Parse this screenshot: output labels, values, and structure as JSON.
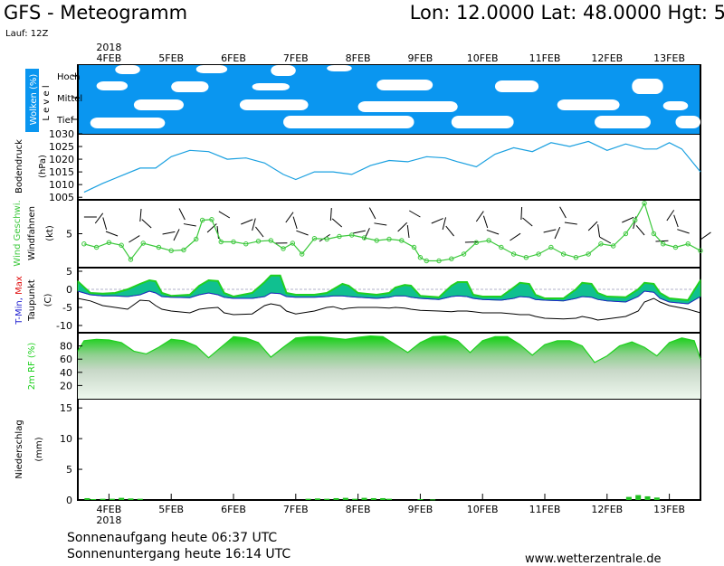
{
  "header": {
    "title": "GFS - Meteogramm",
    "coords": "Lon: 12.0000  Lat: 48.0000  Hgt: 5",
    "run": "Lauf: 12Z"
  },
  "footer": {
    "sunrise": "Sonnenaufgang heute 06:37 UTC",
    "sunset": "Sonnenuntergang heute 16:14 UTC",
    "website": "www.wetterzentrale.de"
  },
  "colors": {
    "cloud": "#0a96f0",
    "pressure": "#1aa0e0",
    "wind": "#3cc83c",
    "temp_max": "#e01010",
    "temp_min": "#2020d0",
    "temp_fill": "#10c090",
    "temp_top": "#20d020",
    "humidity": "#20d020",
    "precip": "#20c020"
  },
  "chart_data": {
    "type": "line",
    "x_axis": {
      "year": "2018",
      "ticks": [
        "4FEB",
        "5FEB",
        "6FEB",
        "7FEB",
        "8FEB",
        "9FEB",
        "10FEB",
        "11FEB",
        "12FEB",
        "13FEB"
      ]
    },
    "panels": {
      "clouds": {
        "ylabel": "Wolken (%)",
        "level_label": "L e v e l",
        "levels": [
          "Hoch",
          "Mittel",
          "Tief"
        ]
      },
      "pressure": {
        "ylabel": "Bodendruck",
        "unit": "(hPa)",
        "ylim": [
          1004,
          1030
        ],
        "yticks": [
          1005,
          1010,
          1015,
          1020,
          1025,
          1030
        ],
        "x_days": [
          3.6,
          3.9,
          4.2,
          4.5,
          4.75,
          5.0,
          5.3,
          5.6,
          5.9,
          6.2,
          6.5,
          6.8,
          7.0,
          7.3,
          7.6,
          7.9,
          8.2,
          8.5,
          8.8,
          9.1,
          9.4,
          9.6,
          9.9,
          10.2,
          10.5,
          10.8,
          11.1,
          11.4,
          11.7,
          12.0,
          12.3,
          12.6,
          12.8,
          13.0,
          13.2,
          13.5
        ],
        "values": [
          1007,
          1010.5,
          1013.5,
          1016.5,
          1016.5,
          1021,
          1023.5,
          1023,
          1020,
          1020.5,
          1018.5,
          1014,
          1012,
          1015,
          1015,
          1014,
          1017.5,
          1019.5,
          1019,
          1021,
          1020.5,
          1019,
          1017,
          1022,
          1024.5,
          1023,
          1026.5,
          1025,
          1027,
          1023.5,
          1026,
          1024,
          1024,
          1026.5,
          1024,
          1015
        ]
      },
      "wind": {
        "ylabel": "Wind Geschwi.",
        "sublabel": "Windfahnen",
        "unit": "(kt)",
        "ylim": [
          0,
          10
        ],
        "yticks": [
          5
        ],
        "x_days": [
          3.6,
          3.8,
          4.0,
          4.2,
          4.35,
          4.55,
          4.8,
          5.0,
          5.2,
          5.4,
          5.5,
          5.65,
          5.8,
          6.0,
          6.2,
          6.4,
          6.6,
          6.8,
          6.95,
          7.1,
          7.3,
          7.5,
          7.7,
          7.9,
          8.1,
          8.3,
          8.5,
          8.7,
          8.9,
          9.0,
          9.1,
          9.3,
          9.5,
          9.7,
          9.9,
          10.1,
          10.3,
          10.5,
          10.7,
          10.9,
          11.1,
          11.3,
          11.5,
          11.7,
          11.9,
          12.1,
          12.3,
          12.45,
          12.6,
          12.75,
          12.9,
          13.1,
          13.3,
          13.5
        ],
        "values": [
          3.5,
          3.0,
          3.7,
          3.3,
          1.2,
          3.6,
          3.0,
          2.5,
          2.6,
          4.2,
          7.0,
          7.1,
          3.8,
          3.8,
          3.5,
          3.9,
          4.0,
          2.8,
          3.6,
          2.0,
          4.3,
          4.2,
          4.6,
          4.8,
          4.4,
          4.0,
          4.2,
          4.0,
          3.0,
          1.5,
          1.0,
          1.0,
          1.3,
          2.0,
          3.7,
          4.0,
          3.0,
          2.0,
          1.5,
          2.0,
          3.0,
          2.0,
          1.5,
          2.0,
          3.5,
          3.2,
          5.0,
          7.0,
          9.5,
          5.0,
          3.5,
          3.0,
          3.5,
          2.5
        ]
      },
      "temperature": {
        "ylabel": "T-Min, Max",
        "sublabel": "Taupunkt",
        "unit": "(C)",
        "ylim": [
          -12,
          6
        ],
        "yticks": [
          5,
          0,
          -5,
          -10
        ],
        "x_days": [
          3.5,
          3.7,
          3.9,
          4.1,
          4.3,
          4.5,
          4.65,
          4.75,
          4.85,
          5.0,
          5.3,
          5.45,
          5.6,
          5.75,
          5.85,
          6.0,
          6.3,
          6.5,
          6.6,
          6.75,
          6.85,
          7.0,
          7.3,
          7.5,
          7.6,
          7.75,
          7.85,
          8.0,
          8.3,
          8.5,
          8.6,
          8.75,
          8.85,
          9.0,
          9.3,
          9.5,
          9.6,
          9.75,
          9.85,
          10.0,
          10.3,
          10.5,
          10.6,
          10.75,
          10.85,
          11.0,
          11.3,
          11.5,
          11.6,
          11.75,
          11.85,
          12.0,
          12.3,
          12.5,
          12.6,
          12.75,
          12.85,
          13.0,
          13.3,
          13.5
        ],
        "max": [
          2.2,
          -1.0,
          -1.2,
          -1.0,
          0.0,
          1.5,
          2.5,
          2.2,
          -1.0,
          -1.8,
          -1.5,
          1.0,
          2.5,
          2.3,
          -1.0,
          -2.0,
          -1.0,
          2.0,
          3.8,
          3.8,
          -1.0,
          -1.5,
          -1.5,
          -1.0,
          0.0,
          1.5,
          1.0,
          -1.0,
          -1.5,
          -1.0,
          0.5,
          1.2,
          1.0,
          -1.8,
          -2.2,
          1.0,
          2.0,
          2.0,
          -1.5,
          -2.0,
          -2.0,
          0.5,
          1.8,
          1.5,
          -1.5,
          -2.5,
          -2.5,
          0.0,
          1.8,
          1.5,
          -1.0,
          -2.0,
          -2.2,
          0.0,
          1.8,
          1.5,
          -1.0,
          -2.5,
          -3.0,
          2.5
        ],
        "min": [
          -0.5,
          -1.5,
          -1.8,
          -1.8,
          -2.0,
          -1.5,
          -0.5,
          -1.0,
          -2.0,
          -2.2,
          -2.3,
          -1.5,
          -1.0,
          -1.5,
          -2.2,
          -2.5,
          -2.5,
          -2.0,
          -1.0,
          -1.2,
          -2.0,
          -2.2,
          -2.2,
          -2.0,
          -1.8,
          -1.8,
          -2.0,
          -2.2,
          -2.5,
          -2.2,
          -1.8,
          -1.8,
          -2.2,
          -2.5,
          -2.8,
          -2.0,
          -1.8,
          -2.0,
          -2.5,
          -2.8,
          -3.0,
          -2.5,
          -2.0,
          -2.2,
          -2.8,
          -3.0,
          -3.2,
          -2.5,
          -2.0,
          -2.2,
          -2.8,
          -3.2,
          -3.5,
          -2.0,
          -0.5,
          -0.8,
          -2.5,
          -3.5,
          -4.0,
          -2.0
        ],
        "dewpoint": [
          -2.5,
          -3.2,
          -4.5,
          -5.0,
          -5.5,
          -3.0,
          -3.2,
          -4.5,
          -5.5,
          -6.0,
          -6.5,
          -5.5,
          -5.2,
          -5.0,
          -6.5,
          -7.0,
          -6.8,
          -4.5,
          -4.0,
          -4.5,
          -6.0,
          -6.8,
          -6.0,
          -5.0,
          -4.8,
          -5.5,
          -5.2,
          -5.0,
          -5.0,
          -5.2,
          -5.0,
          -5.2,
          -5.5,
          -5.8,
          -6.0,
          -6.2,
          -6.0,
          -6.0,
          -6.2,
          -6.5,
          -6.5,
          -6.8,
          -7.0,
          -7.0,
          -7.5,
          -8.0,
          -8.2,
          -8.0,
          -7.5,
          -8.0,
          -8.5,
          -8.2,
          -7.5,
          -6.0,
          -3.5,
          -2.5,
          -3.5,
          -4.5,
          -5.5,
          -6.5
        ]
      },
      "humidity": {
        "ylabel": "2m RF (%)",
        "ylim": [
          0,
          100
        ],
        "yticks": [
          80,
          60,
          40,
          20
        ],
        "x_days": [
          3.5,
          3.6,
          3.8,
          4.0,
          4.2,
          4.4,
          4.6,
          4.8,
          5.0,
          5.2,
          5.4,
          5.6,
          5.8,
          6.0,
          6.2,
          6.4,
          6.6,
          6.8,
          7.0,
          7.2,
          7.4,
          7.6,
          7.8,
          8.0,
          8.2,
          8.4,
          8.6,
          8.8,
          9.0,
          9.2,
          9.4,
          9.6,
          9.8,
          10.0,
          10.2,
          10.4,
          10.6,
          10.8,
          11.0,
          11.2,
          11.4,
          11.6,
          11.8,
          12.0,
          12.2,
          12.4,
          12.6,
          12.8,
          13.0,
          13.2,
          13.4,
          13.5
        ],
        "values": [
          72,
          88,
          90,
          89,
          85,
          72,
          68,
          78,
          90,
          88,
          80,
          62,
          78,
          94,
          92,
          85,
          63,
          78,
          92,
          94,
          94,
          92,
          90,
          93,
          95,
          94,
          82,
          70,
          85,
          94,
          95,
          88,
          70,
          88,
          94,
          94,
          82,
          66,
          82,
          88,
          88,
          80,
          55,
          65,
          80,
          86,
          78,
          65,
          85,
          92,
          88,
          60
        ]
      },
      "precipitation": {
        "ylabel": "Niederschlag",
        "unit": "(mm)",
        "ylim": [
          0,
          16.5
        ],
        "yticks": [
          15,
          10,
          5,
          0
        ],
        "x_days": [
          3.65,
          3.75,
          3.9,
          4.05,
          4.2,
          4.35,
          4.5,
          7.2,
          7.35,
          7.5,
          7.65,
          7.8,
          7.95,
          8.1,
          8.25,
          8.4,
          8.5,
          9.0,
          9.2,
          12.35,
          12.5,
          12.65,
          12.8
        ],
        "values": [
          0.3,
          0.15,
          0.2,
          0.2,
          0.35,
          0.25,
          0.2,
          0.2,
          0.25,
          0.2,
          0.3,
          0.35,
          0.2,
          0.35,
          0.3,
          0.3,
          0.2,
          0.15,
          0.1,
          0.5,
          0.8,
          0.6,
          0.4
        ]
      }
    }
  }
}
